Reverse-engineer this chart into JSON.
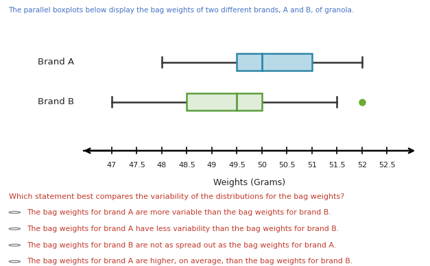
{
  "title": "The parallel boxplots below display the bag weights of two different brands, A and B, of granola.",
  "title_color": "#4472c4",
  "xlabel": "Weights (Grams)",
  "x_ticks": [
    47,
    47.5,
    48,
    48.5,
    49,
    49.5,
    50,
    50.5,
    51,
    51.5,
    52,
    52.5
  ],
  "x_min": 46.4,
  "x_max": 53.1,
  "brand_A": {
    "label": "Brand A",
    "min": 48.0,
    "Q1": 49.5,
    "median": 50.0,
    "Q3": 51.0,
    "max": 52.0,
    "outliers": [],
    "box_facecolor": "#b8d9e8",
    "box_edgecolor": "#2e86a8",
    "whisker_color": "#333333",
    "median_color": "#2e86a8"
  },
  "brand_B": {
    "label": "Brand B",
    "min": 47.0,
    "Q1": 48.5,
    "median": 49.5,
    "Q3": 50.0,
    "max": 51.5,
    "outliers": [
      52.0
    ],
    "box_facecolor": "#e0edd8",
    "box_edgecolor": "#5a9e3a",
    "whisker_color": "#333333",
    "median_color": "#5a9e3a",
    "outlier_color": "#6aaa2e"
  },
  "question_text": "Which statement best compares the variability of the distributions for the bag weights?",
  "question_color": "#c0392b",
  "options": [
    "The bag weights for brand A are more variable than the bag weights for brand B.",
    "The bag weights for brand A have less variability than the bag weights for brand B.",
    "The bag weights for brand B are not as spread out as the bag weights for brand A.",
    "The bag weights for brand A are higher, on average, than the bag weights for brand B."
  ],
  "options_color": "#c0392b",
  "background_color": "#ffffff"
}
